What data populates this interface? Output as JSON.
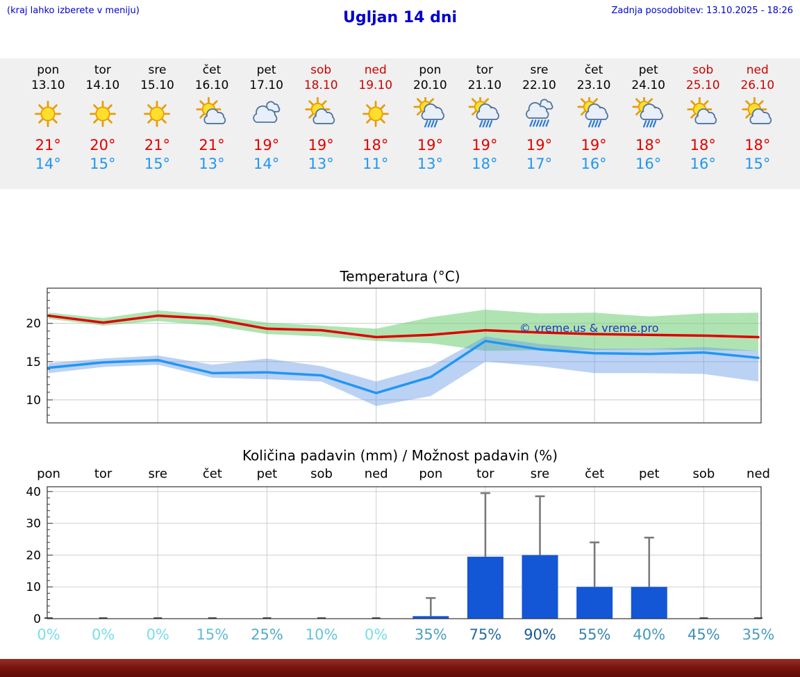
{
  "header": {
    "hint": "(kraj lahko izberete v meniju)",
    "title": "Ugljan 14 dni",
    "updated": "Zadnja posodobitev: 13.10.2025 - 18:26"
  },
  "colors": {
    "link_blue": "#0000cc",
    "weekend_red": "#cc0000",
    "high_red": "#e00000",
    "low_blue": "#2196f3",
    "bar_blue": "#1356d6",
    "whisker_gray": "#7a7a7a",
    "band_green": "rgba(110,205,115,0.55)",
    "band_blue": "rgba(105,155,230,0.45)",
    "prob_color_low": "#7adde8",
    "prob_color_high": "#10508f",
    "strip_bg": "#f0f0f0",
    "footer_red": "#7a150f"
  },
  "days": [
    {
      "name": "pon",
      "date": "13.10",
      "weekend": false,
      "icon": "sun",
      "high": "21°",
      "low": "14°"
    },
    {
      "name": "tor",
      "date": "14.10",
      "weekend": false,
      "icon": "sun",
      "high": "20°",
      "low": "15°"
    },
    {
      "name": "sre",
      "date": "15.10",
      "weekend": false,
      "icon": "sun",
      "high": "21°",
      "low": "15°"
    },
    {
      "name": "čet",
      "date": "16.10",
      "weekend": false,
      "icon": "sun-cloud",
      "high": "21°",
      "low": "13°"
    },
    {
      "name": "pet",
      "date": "17.10",
      "weekend": false,
      "icon": "cloud",
      "high": "19°",
      "low": "14°"
    },
    {
      "name": "sob",
      "date": "18.10",
      "weekend": true,
      "icon": "sun-cloud",
      "high": "19°",
      "low": "13°"
    },
    {
      "name": "ned",
      "date": "19.10",
      "weekend": true,
      "icon": "sun",
      "high": "18°",
      "low": "11°"
    },
    {
      "name": "pon",
      "date": "20.10",
      "weekend": false,
      "icon": "sun-rain",
      "high": "19°",
      "low": "13°"
    },
    {
      "name": "tor",
      "date": "21.10",
      "weekend": false,
      "icon": "sun-rain",
      "high": "19°",
      "low": "18°"
    },
    {
      "name": "sre",
      "date": "22.10",
      "weekend": false,
      "icon": "cloud-rain",
      "high": "19°",
      "low": "17°"
    },
    {
      "name": "čet",
      "date": "23.10",
      "weekend": false,
      "icon": "sun-rain",
      "high": "19°",
      "low": "16°"
    },
    {
      "name": "pet",
      "date": "24.10",
      "weekend": false,
      "icon": "sun-rain",
      "high": "18°",
      "low": "16°"
    },
    {
      "name": "sob",
      "date": "25.10",
      "weekend": true,
      "icon": "sun-cloud",
      "high": "18°",
      "low": "16°"
    },
    {
      "name": "ned",
      "date": "26.10",
      "weekend": true,
      "icon": "sun-cloud",
      "high": "18°",
      "low": "15°"
    }
  ],
  "chart_data": [
    {
      "type": "line",
      "title": "Temperatura (°C)",
      "categories": [
        "pon",
        "tor",
        "sre",
        "čet",
        "pet",
        "sob",
        "ned",
        "pon",
        "tor",
        "sre",
        "čet",
        "pet",
        "sob",
        "ned"
      ],
      "ylim": [
        7,
        24.6
      ],
      "yticks": [
        10,
        15,
        20
      ],
      "grid": true,
      "legend": "none",
      "watermark": "© vreme.us & vreme.pro",
      "series": [
        {
          "name": "max-temperature",
          "color": "#e00000",
          "values": [
            21,
            20.1,
            21,
            20.6,
            19.3,
            19.1,
            18.2,
            18.5,
            19.1,
            18.8,
            18.6,
            18.5,
            18.4,
            18.2
          ]
        },
        {
          "name": "min-temperature",
          "color": "#2196f3",
          "values": [
            14.2,
            14.9,
            15.2,
            13.5,
            13.6,
            13.2,
            10.9,
            13,
            17.7,
            16.6,
            16.1,
            16,
            16.2,
            15.5
          ]
        }
      ],
      "bands": [
        {
          "name": "max-temperature-range",
          "color": "rgba(110,205,115,0.55)",
          "upper": [
            21.4,
            20.7,
            21.7,
            21.1,
            20.1,
            19.7,
            19.3,
            20.8,
            21.8,
            21.3,
            21.4,
            20.9,
            21.3,
            21.4
          ],
          "lower": [
            20.6,
            19.7,
            20.3,
            19.7,
            18.6,
            18.3,
            17.7,
            17.4,
            16.4,
            16.5,
            16.5,
            16.6,
            16.5,
            16.4
          ]
        },
        {
          "name": "min-temperature-range",
          "color": "rgba(105,155,230,0.45)",
          "upper": [
            14.8,
            15.4,
            15.8,
            14.6,
            15.4,
            14.4,
            12.4,
            14.4,
            18.3,
            17.3,
            16.7,
            16.7,
            16.9,
            16.4
          ],
          "lower": [
            13.5,
            14.3,
            14.6,
            12.9,
            12.7,
            12.4,
            9.2,
            10.5,
            15,
            14.4,
            13.5,
            13.5,
            13.4,
            12.4
          ]
        }
      ]
    },
    {
      "type": "bar",
      "title": "Količina padavin (mm) / Možnost padavin (%)",
      "categories": [
        "pon",
        "tor",
        "sre",
        "čet",
        "pet",
        "sob",
        "ned",
        "pon",
        "tor",
        "sre",
        "čet",
        "pet",
        "sob",
        "ned"
      ],
      "ylim": [
        0,
        41.5
      ],
      "yticks": [
        0,
        10,
        20,
        30,
        40
      ],
      "grid": true,
      "values": [
        0,
        0,
        0,
        0,
        0,
        0,
        0,
        0.8,
        19.5,
        20,
        10,
        10,
        0,
        0
      ],
      "whisker_max": [
        0,
        0,
        0,
        0,
        0,
        0,
        0,
        6.5,
        39.5,
        38.5,
        24,
        25.5,
        0,
        0
      ],
      "probabilities_pct": [
        0,
        0,
        0,
        15,
        25,
        10,
        0,
        35,
        75,
        90,
        55,
        40,
        45,
        35
      ]
    }
  ]
}
